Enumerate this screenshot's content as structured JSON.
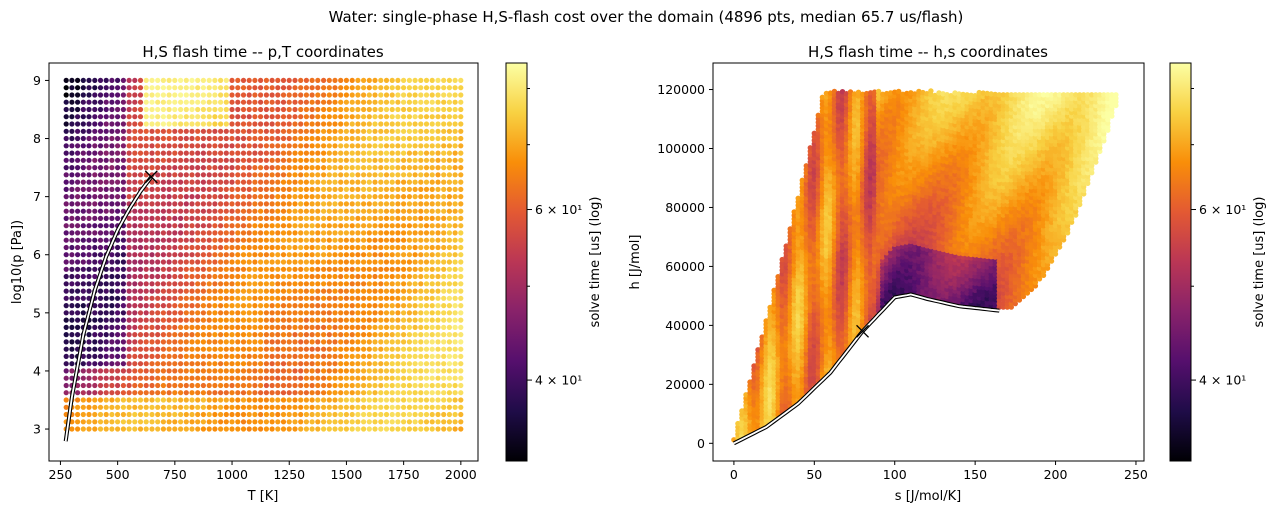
{
  "figure": {
    "suptitle": "Water: single-phase H,S-flash cost over the domain (4896 pts, median 65.7 us/flash)"
  },
  "colormap": {
    "name": "inferno",
    "stops": [
      "#000004",
      "#1f0c48",
      "#550f6d",
      "#88226a",
      "#ba3655",
      "#e35933",
      "#f98e09",
      "#f8d142",
      "#fcffa4"
    ]
  },
  "chart_data": [
    {
      "type": "scatter",
      "title": "H,S flash time -- p,T coordinates",
      "xlabel": "T [K]",
      "ylabel": "log10(p [Pa])",
      "xlim": [
        200,
        2075
      ],
      "ylim": [
        2.45,
        9.3
      ],
      "xticks": [
        250,
        500,
        750,
        1000,
        1250,
        1500,
        1750,
        2000
      ],
      "yticks": [
        3,
        4,
        5,
        6,
        7,
        8,
        9
      ],
      "grid": false,
      "points": {
        "x_range": [
          275,
          2000
        ],
        "y_range": [
          3.0,
          9.0
        ],
        "color_value_range": [
          36,
          80
        ],
        "description_of_trend": "low cost (~38 us) at low T / high p liquid region, high cost (~75 us) at high T and near upper-right"
      },
      "saturation_curve": {
        "T": [
          273.16,
          300,
          350,
          400,
          450,
          500,
          550,
          600,
          647.1
        ],
        "log10p": [
          2.79,
          3.55,
          4.62,
          5.39,
          5.97,
          6.42,
          6.78,
          7.09,
          7.34
        ]
      },
      "critical_point": {
        "T": 647.1,
        "log10p": 7.34
      },
      "colorbar": {
        "label": "solve time [us] (log)",
        "scale": "log",
        "range": [
          33,
          85
        ],
        "major_ticks": [
          {
            "value": 40,
            "label": "4 × 10¹"
          },
          {
            "value": 60,
            "label": "6 × 10¹"
          }
        ],
        "minor_ticks": [
          50,
          70,
          80
        ]
      }
    },
    {
      "type": "scatter",
      "title": "H,S flash time -- h,s coordinates",
      "xlabel": "s [J/mol/K]",
      "ylabel": "h [J/mol]",
      "xlim": [
        -13,
        255
      ],
      "ylim": [
        -6000,
        129000
      ],
      "xticks": [
        0,
        50,
        100,
        150,
        200,
        250
      ],
      "yticks": [
        0,
        20000,
        40000,
        60000,
        80000,
        100000,
        120000
      ],
      "grid": false,
      "points": {
        "s_range": [
          0,
          240
        ],
        "h_range": [
          0,
          120000
        ],
        "color_value_range": [
          36,
          80
        ],
        "description_of_trend": "region above saturation dome; cost banded diagonally, lowest just above the dome near s 90-160"
      },
      "saturation_curve": {
        "s": [
          0,
          20,
          40,
          60,
          80,
          100,
          110,
          120,
          140,
          165
        ],
        "h": [
          0,
          5500,
          13500,
          24000,
          38000,
          49500,
          50500,
          49000,
          46500,
          45000
        ]
      },
      "critical_point": {
        "s": 80,
        "h": 38000
      },
      "colorbar": {
        "label": "solve time [us] (log)",
        "scale": "log",
        "range": [
          33,
          85
        ],
        "major_ticks": [
          {
            "value": 40,
            "label": "4 × 10¹"
          },
          {
            "value": 60,
            "label": "6 × 10¹"
          }
        ],
        "minor_ticks": [
          50,
          70,
          80
        ]
      }
    }
  ]
}
